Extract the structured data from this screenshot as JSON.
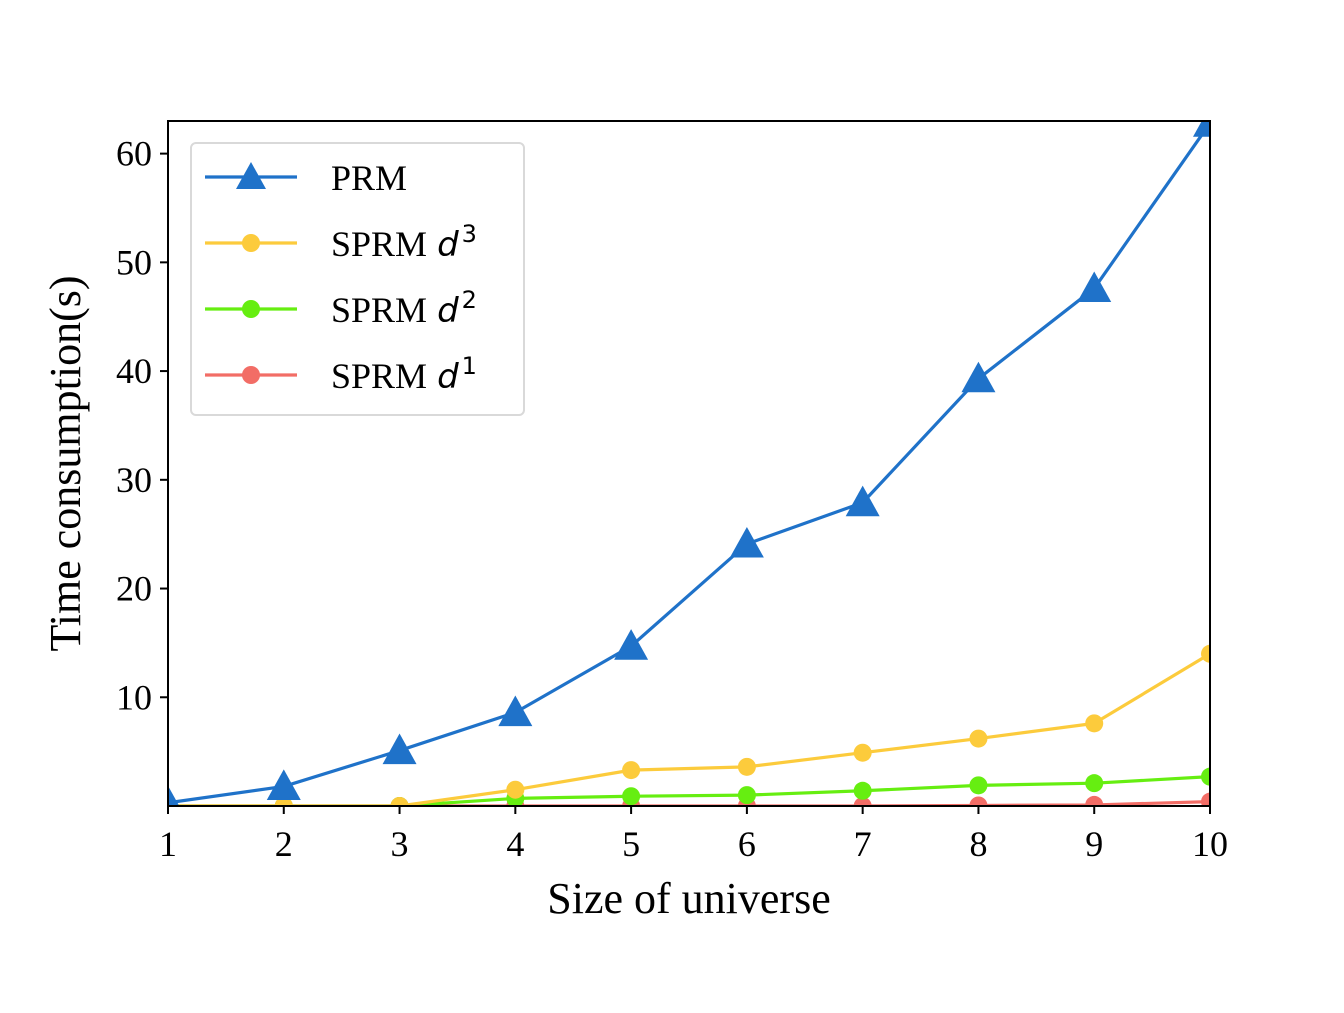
{
  "chart_data": {
    "type": "line",
    "xlabel": "Size of universe",
    "ylabel": "Time consumption(s)",
    "x": [
      1,
      2,
      3,
      4,
      5,
      6,
      7,
      8,
      9,
      10
    ],
    "xlim": [
      1,
      10
    ],
    "ylim": [
      0,
      63
    ],
    "xticks": [
      1,
      2,
      3,
      4,
      5,
      6,
      7,
      8,
      9,
      10
    ],
    "yticks": [
      10,
      20,
      30,
      40,
      50,
      60
    ],
    "grid": false,
    "legend_position": "upper-left",
    "series": [
      {
        "name": "PRM",
        "color": "#1f72c9",
        "marker": "triangle",
        "values": [
          0.3,
          1.8,
          5.1,
          8.6,
          14.7,
          24.1,
          27.9,
          39.3,
          47.6,
          62.8
        ]
      },
      {
        "name": "SPRM",
        "name_var": "d",
        "name_exp": "3",
        "color": "#fccb3c",
        "marker": "circle",
        "values": [
          0.0,
          0.0,
          0.0,
          1.5,
          3.3,
          3.6,
          4.9,
          6.2,
          7.6,
          14.0
        ]
      },
      {
        "name": "SPRM",
        "name_var": "d",
        "name_exp": "2",
        "color": "#66ee11",
        "marker": "circle",
        "values": [
          0.0,
          0.0,
          0.0,
          0.7,
          0.9,
          1.0,
          1.4,
          1.9,
          2.1,
          2.7
        ]
      },
      {
        "name": "SPRM",
        "name_var": "d",
        "name_exp": "1",
        "color": "#f26d66",
        "marker": "circle",
        "values": [
          0.0,
          0.0,
          0.0,
          0.0,
          0.0,
          0.0,
          0.0,
          0.05,
          0.1,
          0.4
        ]
      }
    ]
  }
}
